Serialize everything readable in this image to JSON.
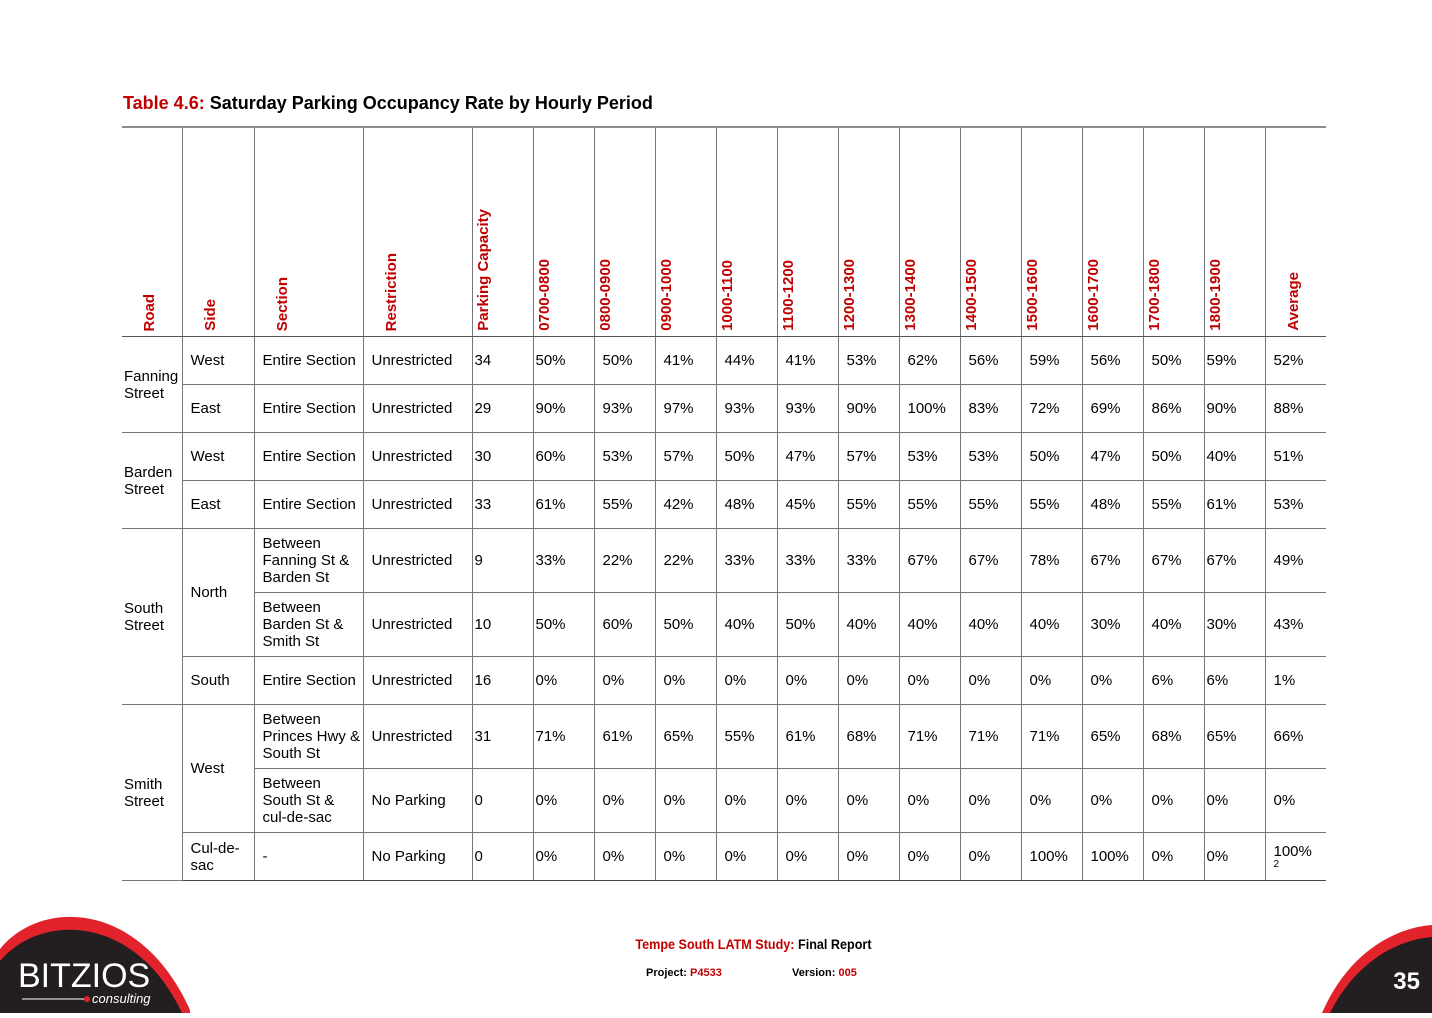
{
  "caption": {
    "label": "Table 4.6:",
    "title": "Saturday Parking Occupancy Rate by Hourly Period"
  },
  "table": {
    "headers": [
      "Road",
      "Side",
      "Section",
      "Restriction",
      "Parking Capacity",
      "0700-0800",
      "0800-0900",
      "0900-1000",
      "1000-1100",
      "1100-1200",
      "1200-1300",
      "1300-1400",
      "1400-1500",
      "1500-1600",
      "1600-1700",
      "1700-1800",
      "1800-1900",
      "Average"
    ],
    "rows": [
      {
        "road": "Fanning Street",
        "road_span": 2,
        "side": "West",
        "side_span": 1,
        "section": "Entire Section",
        "restriction": "Unrestricted",
        "capacity": "34",
        "hours": [
          "50%",
          "50%",
          "41%",
          "44%",
          "41%",
          "53%",
          "62%",
          "56%",
          "59%",
          "56%",
          "50%",
          "59%"
        ],
        "average": "52%"
      },
      {
        "side": "East",
        "side_span": 1,
        "section": "Entire Section",
        "restriction": "Unrestricted",
        "capacity": "29",
        "hours": [
          "90%",
          "93%",
          "97%",
          "93%",
          "93%",
          "90%",
          "100%",
          "83%",
          "72%",
          "69%",
          "86%",
          "90%"
        ],
        "average": "88%"
      },
      {
        "road": "Barden Street",
        "road_span": 2,
        "side": "West",
        "side_span": 1,
        "section": "Entire Section",
        "restriction": "Unrestricted",
        "capacity": "30",
        "hours": [
          "60%",
          "53%",
          "57%",
          "50%",
          "47%",
          "57%",
          "53%",
          "53%",
          "50%",
          "47%",
          "50%",
          "40%"
        ],
        "average": "51%"
      },
      {
        "side": "East",
        "side_span": 1,
        "section": "Entire Section",
        "restriction": "Unrestricted",
        "capacity": "33",
        "hours": [
          "61%",
          "55%",
          "42%",
          "48%",
          "45%",
          "55%",
          "55%",
          "55%",
          "55%",
          "48%",
          "55%",
          "61%"
        ],
        "average": "53%"
      },
      {
        "road": "South Street",
        "road_span": 3,
        "side": "North",
        "side_span": 2,
        "section": "Between Fanning St & Barden St",
        "restriction": "Unrestricted",
        "capacity": "9",
        "hours": [
          "33%",
          "22%",
          "22%",
          "33%",
          "33%",
          "33%",
          "67%",
          "67%",
          "78%",
          "67%",
          "67%",
          "67%"
        ],
        "average": "49%"
      },
      {
        "section": "Between Barden St & Smith St",
        "restriction": "Unrestricted",
        "capacity": "10",
        "hours": [
          "50%",
          "60%",
          "50%",
          "40%",
          "50%",
          "40%",
          "40%",
          "40%",
          "40%",
          "30%",
          "40%",
          "30%"
        ],
        "average": "43%"
      },
      {
        "side": "South",
        "side_span": 1,
        "section": "Entire Section",
        "restriction": "Unrestricted",
        "capacity": "16",
        "hours": [
          "0%",
          "0%",
          "0%",
          "0%",
          "0%",
          "0%",
          "0%",
          "0%",
          "0%",
          "0%",
          "6%",
          "6%"
        ],
        "average": "1%"
      },
      {
        "road": "Smith Street",
        "road_span": 3,
        "side": "West",
        "side_span": 2,
        "section": "Between Princes Hwy & South St",
        "restriction": "Unrestricted",
        "capacity": "31",
        "hours": [
          "71%",
          "61%",
          "65%",
          "55%",
          "61%",
          "68%",
          "71%",
          "71%",
          "71%",
          "65%",
          "68%",
          "65%"
        ],
        "average": "66%"
      },
      {
        "section": "Between South St & cul-de-sac",
        "restriction": "No Parking",
        "capacity": "0",
        "hours": [
          "0%",
          "0%",
          "0%",
          "0%",
          "0%",
          "0%",
          "0%",
          "0%",
          "0%",
          "0%",
          "0%",
          "0%"
        ],
        "average": "0%"
      },
      {
        "side": "Cul-de-sac",
        "side_span": 1,
        "section": "-",
        "restriction": "No Parking",
        "capacity": "0",
        "hours": [
          "0%",
          "0%",
          "0%",
          "0%",
          "0%",
          "0%",
          "0%",
          "0%",
          "100%",
          "100%",
          "0%",
          "0%"
        ],
        "average": "100%",
        "average_note": "2"
      }
    ]
  },
  "footer": {
    "study": "Tempe South LATM Study:",
    "report": "Final Report",
    "project_label": "Project:",
    "project_value": "P4533",
    "version_label": "Version:",
    "version_value": "005",
    "page_number": "35"
  },
  "logo": {
    "name": "BITZIOS",
    "tagline": "consulting",
    "colors": {
      "red": "#e3232b",
      "dark": "#231f20"
    }
  }
}
